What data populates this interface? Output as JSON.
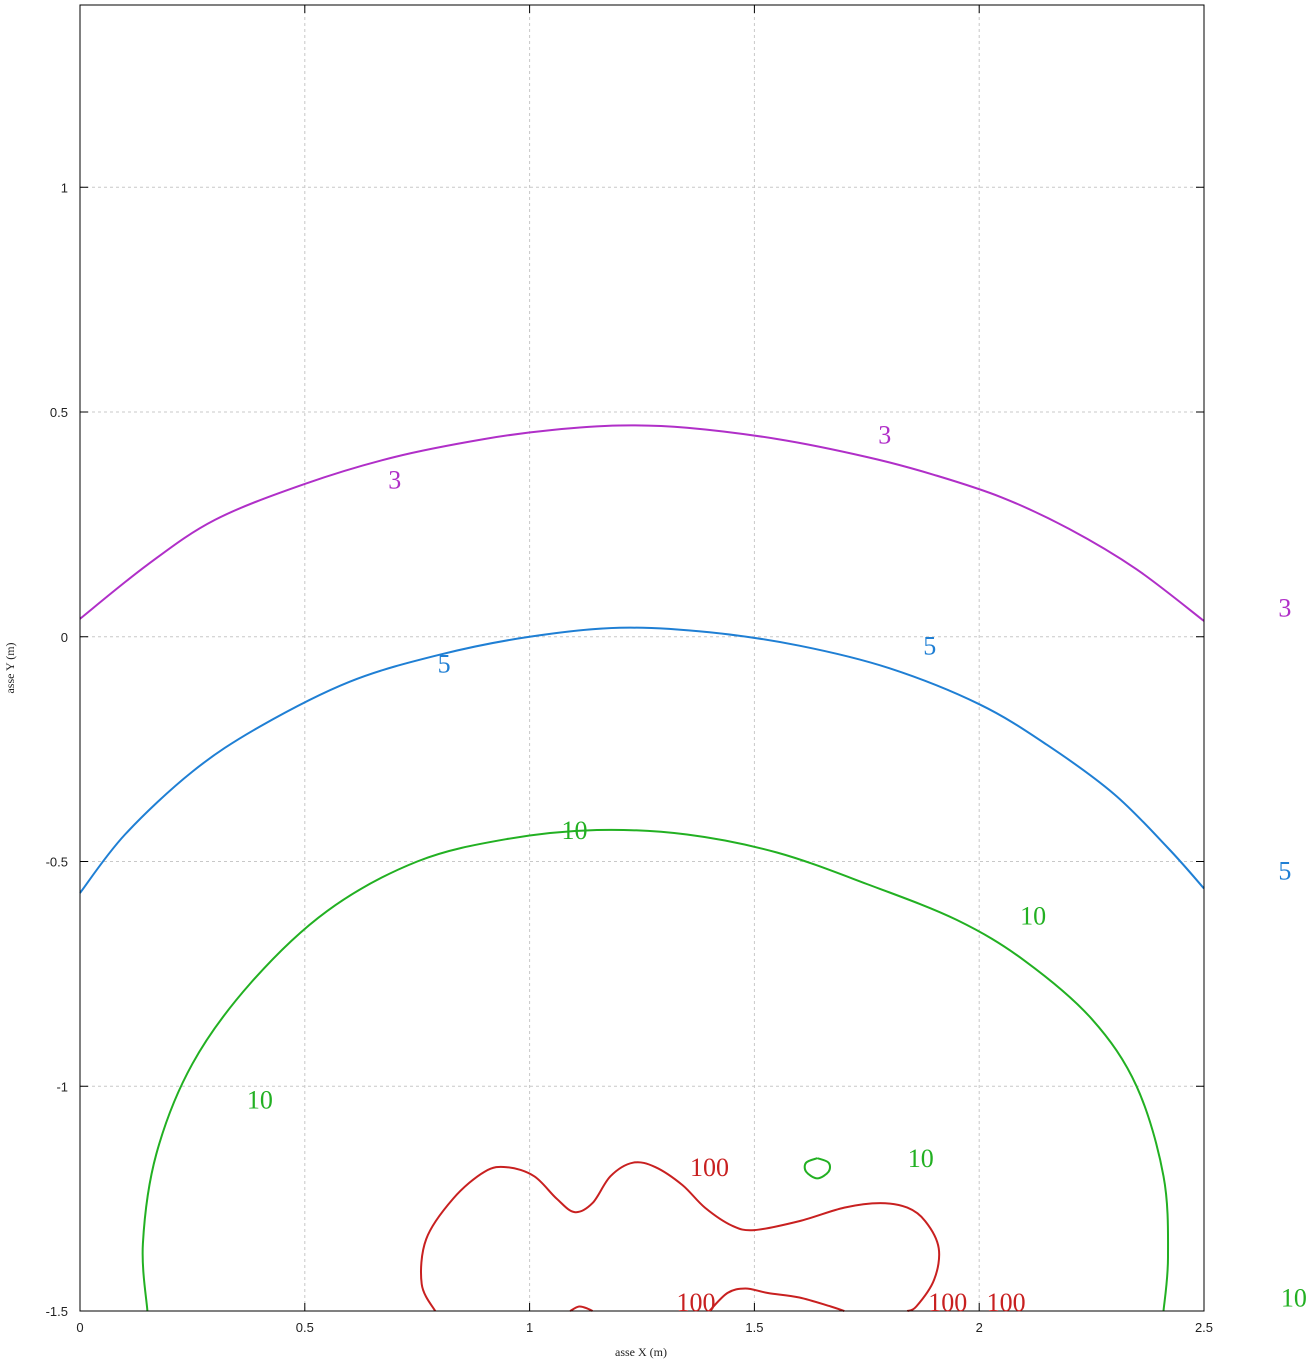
{
  "chart_data": {
    "type": "contour",
    "title": "",
    "xlabel": "asse X (m)",
    "ylabel": "asse Y (m)",
    "xlim": [
      0,
      2.5
    ],
    "ylim": [
      -1.5,
      1.4
    ],
    "grid": true,
    "xticks": [
      0,
      0.5,
      1,
      1.5,
      2,
      2.5
    ],
    "xtick_labels": [
      "0",
      "0.5",
      "1",
      "1.5",
      "2",
      "2.5"
    ],
    "yticks": [
      -1.5,
      -1,
      -0.5,
      0,
      0.5,
      1
    ],
    "ytick_labels": [
      "-1.5",
      "-1",
      "-0.5",
      "0",
      "0.5",
      "1"
    ],
    "series": [
      {
        "level_label": "3",
        "color": "#b02fc8",
        "paths": [
          [
            [
              0,
              0.04
            ],
            [
              0.15,
              0.16
            ],
            [
              0.3,
              0.26
            ],
            [
              0.5,
              0.34
            ],
            [
              0.7,
              0.4
            ],
            [
              0.9,
              0.44
            ],
            [
              1.05,
              0.46
            ],
            [
              1.2,
              0.47
            ],
            [
              1.35,
              0.465
            ],
            [
              1.55,
              0.44
            ],
            [
              1.75,
              0.4
            ],
            [
              1.9,
              0.36
            ],
            [
              2.05,
              0.31
            ],
            [
              2.2,
              0.24
            ],
            [
              2.35,
              0.15
            ],
            [
              2.5,
              0.035
            ]
          ]
        ],
        "labels": [
          {
            "text": "3",
            "x": 0.7,
            "y": 0.33
          },
          {
            "text": "3",
            "x": 1.79,
            "y": 0.43
          },
          {
            "text": "3",
            "x": 2.68,
            "y": 0.045
          }
        ]
      },
      {
        "level_label": "5",
        "color": "#1f7fd4",
        "paths": [
          [
            [
              0,
              -0.57
            ],
            [
              0.1,
              -0.44
            ],
            [
              0.25,
              -0.3
            ],
            [
              0.4,
              -0.2
            ],
            [
              0.6,
              -0.1
            ],
            [
              0.8,
              -0.04
            ],
            [
              1.0,
              0.0
            ],
            [
              1.2,
              0.02
            ],
            [
              1.4,
              0.01
            ],
            [
              1.6,
              -0.02
            ],
            [
              1.8,
              -0.07
            ],
            [
              2.0,
              -0.15
            ],
            [
              2.15,
              -0.24
            ],
            [
              2.3,
              -0.35
            ],
            [
              2.42,
              -0.47
            ],
            [
              2.5,
              -0.56
            ]
          ]
        ],
        "labels": [
          {
            "text": "5",
            "x": 0.81,
            "y": -0.08
          },
          {
            "text": "5",
            "x": 1.89,
            "y": -0.04
          },
          {
            "text": "5",
            "x": 2.68,
            "y": -0.54
          }
        ]
      },
      {
        "level_label": "10",
        "color": "#22b022",
        "paths": [
          [
            [
              0.15,
              -1.5
            ],
            [
              0.14,
              -1.35
            ],
            [
              0.17,
              -1.15
            ],
            [
              0.25,
              -0.95
            ],
            [
              0.38,
              -0.77
            ],
            [
              0.55,
              -0.61
            ],
            [
              0.75,
              -0.5
            ],
            [
              0.95,
              -0.45
            ],
            [
              1.15,
              -0.43
            ],
            [
              1.35,
              -0.44
            ],
            [
              1.55,
              -0.48
            ],
            [
              1.75,
              -0.55
            ],
            [
              1.95,
              -0.63
            ],
            [
              2.1,
              -0.72
            ],
            [
              2.25,
              -0.85
            ],
            [
              2.35,
              -1.0
            ],
            [
              2.41,
              -1.2
            ],
            [
              2.42,
              -1.38
            ],
            [
              2.41,
              -1.5
            ]
          ],
          [
            [
              1.64,
              -1.16
            ],
            [
              1.665,
              -1.17
            ],
            [
              1.665,
              -1.19
            ],
            [
              1.64,
              -1.205
            ],
            [
              1.615,
              -1.19
            ],
            [
              1.615,
              -1.17
            ],
            [
              1.64,
              -1.16
            ]
          ]
        ],
        "labels": [
          {
            "text": "10",
            "x": 1.1,
            "y": -0.45
          },
          {
            "text": "10",
            "x": 2.12,
            "y": -0.64
          },
          {
            "text": "10",
            "x": 0.4,
            "y": -1.05
          },
          {
            "text": "10",
            "x": 1.87,
            "y": -1.18
          },
          {
            "text": "10",
            "x": 2.7,
            "y": -1.49
          }
        ]
      },
      {
        "level_label": "100",
        "color": "#c82020",
        "paths": [
          [
            [
              0.79,
              -1.5
            ],
            [
              0.76,
              -1.44
            ],
            [
              0.77,
              -1.34
            ],
            [
              0.83,
              -1.25
            ],
            [
              0.9,
              -1.19
            ],
            [
              0.95,
              -1.18
            ],
            [
              1.01,
              -1.2
            ],
            [
              1.06,
              -1.25
            ],
            [
              1.1,
              -1.28
            ],
            [
              1.14,
              -1.26
            ],
            [
              1.18,
              -1.2
            ],
            [
              1.23,
              -1.17
            ],
            [
              1.28,
              -1.18
            ],
            [
              1.34,
              -1.22
            ],
            [
              1.39,
              -1.27
            ],
            [
              1.45,
              -1.31
            ],
            [
              1.5,
              -1.32
            ],
            [
              1.6,
              -1.3
            ],
            [
              1.7,
              -1.27
            ],
            [
              1.78,
              -1.26
            ],
            [
              1.84,
              -1.27
            ],
            [
              1.88,
              -1.3
            ],
            [
              1.91,
              -1.36
            ],
            [
              1.9,
              -1.43
            ],
            [
              1.86,
              -1.49
            ],
            [
              1.84,
              -1.5
            ]
          ],
          [
            [
              1.09,
              -1.5
            ],
            [
              1.11,
              -1.49
            ],
            [
              1.13,
              -1.495
            ],
            [
              1.14,
              -1.5
            ]
          ],
          [
            [
              1.4,
              -1.5
            ],
            [
              1.44,
              -1.46
            ],
            [
              1.48,
              -1.45
            ],
            [
              1.53,
              -1.46
            ],
            [
              1.6,
              -1.47
            ],
            [
              1.67,
              -1.49
            ],
            [
              1.7,
              -1.5
            ]
          ]
        ],
        "labels": [
          {
            "text": "100",
            "x": 1.4,
            "y": -1.2
          },
          {
            "text": "100",
            "x": 1.37,
            "y": -1.5
          },
          {
            "text": "100",
            "x": 1.93,
            "y": -1.5
          },
          {
            "text": "100",
            "x": 2.06,
            "y": -1.5
          }
        ]
      }
    ]
  }
}
